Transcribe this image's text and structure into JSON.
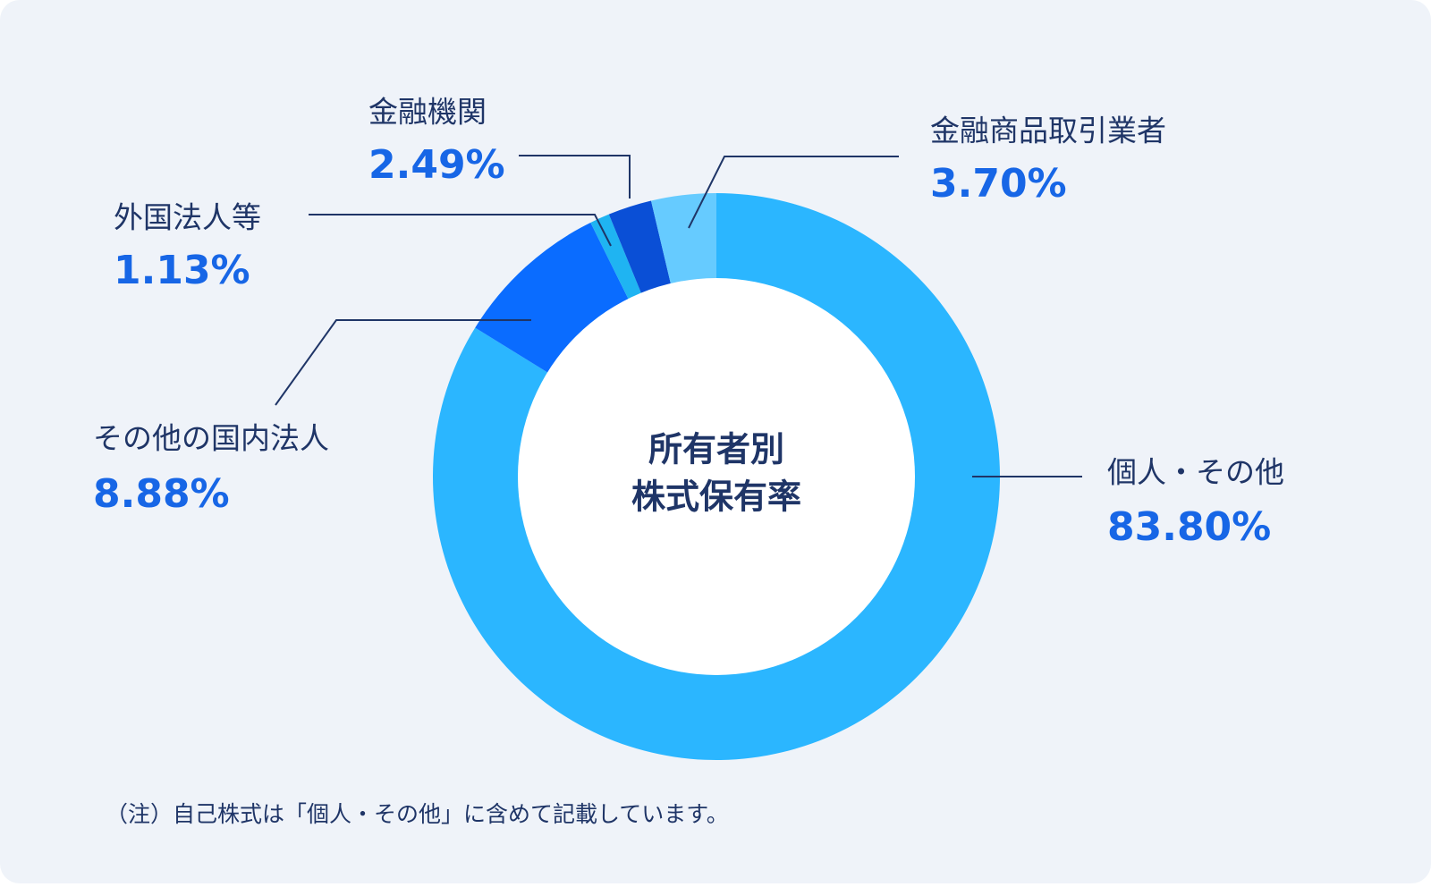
{
  "chart_data": {
    "type": "donut",
    "center_label": [
      "所有者別",
      "株式保有率"
    ],
    "categories": [
      "個人・その他",
      "その他の国内法人",
      "外国法人等",
      "金融機関",
      "金融商品取引業者"
    ],
    "values": [
      83.8,
      8.88,
      1.13,
      2.49,
      3.7
    ],
    "value_labels": [
      "83.80%",
      "8.88%",
      "1.13%",
      "2.49%",
      "3.70%"
    ],
    "colors": [
      "#2bb6ff",
      "#0a6cff",
      "#1fb4f2",
      "#0a4fd6",
      "#66cbff"
    ],
    "note": "（注）自己株式は「個人・その他」に含めて記載しています。"
  }
}
